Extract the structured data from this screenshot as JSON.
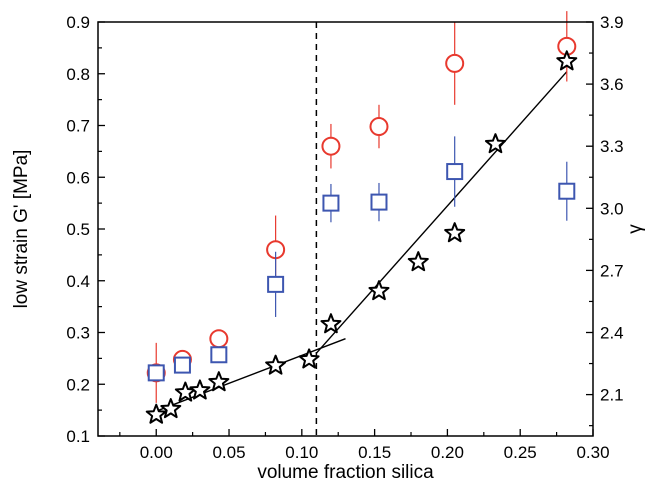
{
  "chart_data": {
    "type": "scatter",
    "xlabel": "volume fraction silica",
    "ylabel": "low strain G' [MPa]",
    "y2label": "γ",
    "xlim": [
      -0.04,
      0.3
    ],
    "ylim": [
      0.1,
      0.9
    ],
    "y2lim": [
      1.9,
      3.9
    ],
    "x_ticks": [
      "0.00",
      "0.05",
      "0.10",
      "0.15",
      "0.20",
      "0.25",
      "0.30"
    ],
    "y_ticks": [
      "0.1",
      "0.2",
      "0.3",
      "0.4",
      "0.5",
      "0.6",
      "0.7",
      "0.8",
      "0.9"
    ],
    "y2_ticks": [
      "2.1",
      "2.4",
      "2.7",
      "3.0",
      "3.3",
      "3.6",
      "3.9"
    ],
    "grid": false,
    "vertical_reference_line": {
      "x": 0.11,
      "style": "dashed"
    },
    "series": [
      {
        "marker": "circle",
        "color": "#e8392e",
        "axis": "left",
        "points": [
          {
            "x": 0.0,
            "y": 0.222,
            "err": 0.058
          },
          {
            "x": 0.018,
            "y": 0.248,
            "err": 0.0
          },
          {
            "x": 0.043,
            "y": 0.288,
            "err": 0.0
          },
          {
            "x": 0.082,
            "y": 0.46,
            "err": 0.066
          },
          {
            "x": 0.12,
            "y": 0.66,
            "err": 0.043
          },
          {
            "x": 0.153,
            "y": 0.698,
            "err": 0.042
          },
          {
            "x": 0.205,
            "y": 0.82,
            "err": 0.08
          },
          {
            "x": 0.282,
            "y": 0.853,
            "err": 0.068
          }
        ]
      },
      {
        "marker": "square",
        "color": "#3d56b0",
        "axis": "left",
        "points": [
          {
            "x": 0.0,
            "y": 0.222,
            "err": 0.0
          },
          {
            "x": 0.018,
            "y": 0.237,
            "err": 0.0
          },
          {
            "x": 0.043,
            "y": 0.257,
            "err": 0.0
          },
          {
            "x": 0.082,
            "y": 0.393,
            "err": 0.063
          },
          {
            "x": 0.12,
            "y": 0.55,
            "err": 0.037
          },
          {
            "x": 0.153,
            "y": 0.552,
            "err": 0.037
          },
          {
            "x": 0.205,
            "y": 0.611,
            "err": 0.068
          },
          {
            "x": 0.282,
            "y": 0.573,
            "err": 0.057
          }
        ]
      },
      {
        "marker": "star",
        "color": "#000000",
        "axis": "right",
        "points": [
          {
            "x": 0.0,
            "y": 2.003
          },
          {
            "x": 0.01,
            "y": 2.03
          },
          {
            "x": 0.02,
            "y": 2.11
          },
          {
            "x": 0.03,
            "y": 2.12
          },
          {
            "x": 0.043,
            "y": 2.16
          },
          {
            "x": 0.082,
            "y": 2.24
          },
          {
            "x": 0.105,
            "y": 2.27
          },
          {
            "x": 0.12,
            "y": 2.44
          },
          {
            "x": 0.153,
            "y": 2.6
          },
          {
            "x": 0.18,
            "y": 2.74
          },
          {
            "x": 0.205,
            "y": 2.88
          },
          {
            "x": 0.233,
            "y": 3.31
          },
          {
            "x": 0.282,
            "y": 3.71
          }
        ]
      }
    ],
    "fit_lines": [
      {
        "axis": "right",
        "x": [
          0.0,
          0.13
        ],
        "y": [
          2.02,
          2.37
        ]
      },
      {
        "axis": "right",
        "x": [
          0.11,
          0.282
        ],
        "y": [
          2.3,
          3.66
        ]
      }
    ]
  }
}
